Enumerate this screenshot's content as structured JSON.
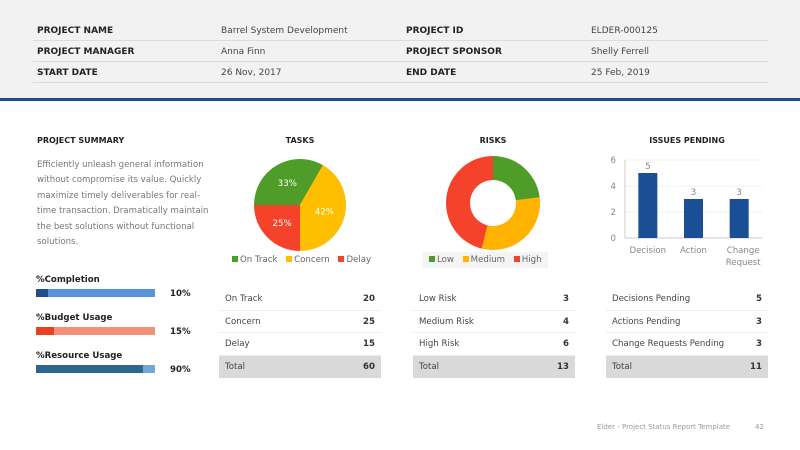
{
  "header": [
    {
      "label": "PROJECT NAME",
      "value": "Barrel System Development",
      "label2": "PROJECT ID",
      "value2": "ELDER-000125"
    },
    {
      "label": "PROJECT MANAGER",
      "value": "Anna Finn",
      "label2": "PROJECT SPONSOR",
      "value2": "Shelly Ferrell"
    },
    {
      "label": "START DATE",
      "value": "26 Nov, 2017",
      "label2": "END DATE",
      "value2": "25 Feb, 2019"
    }
  ],
  "summary": {
    "title": "PROJECT SUMMARY",
    "text": "Efficiently unleash general information without compromise its value. Quickly maximize timely deliverables for real-time transaction. Dramatically maintain the best solutions without functional solutions."
  },
  "progress": [
    {
      "label": "%Completion",
      "value": 10,
      "text": "10%",
      "fg": "#1f4e8c",
      "bg": "#5b93d9"
    },
    {
      "label": "%Budget Usage",
      "value": 15,
      "text": "15%",
      "fg": "#e8411c",
      "bg": "#f4907a"
    },
    {
      "label": "%Resource Usage",
      "value": 90,
      "text": "90%",
      "fg": "#2e6690",
      "bg": "#74a9d6"
    }
  ],
  "colors": {
    "green": "#4f9c28",
    "yellow": "#ffbf00",
    "red": "#f4432a",
    "blue": "#1a4f95"
  },
  "chart_data": [
    {
      "type": "pie",
      "title": "TASKS",
      "categories": [
        "On Track",
        "Concern",
        "Delay"
      ],
      "values": [
        20,
        25,
        15
      ],
      "labels": [
        "33%",
        "42%",
        "25%"
      ],
      "colors": [
        "#4f9c28",
        "#ffbf00",
        "#f4432a"
      ],
      "legend": "bottom"
    },
    {
      "type": "pie",
      "donut": true,
      "title": "RISKS",
      "categories": [
        "Low",
        "Medium",
        "High"
      ],
      "values": [
        3,
        4,
        6
      ],
      "colors": [
        "#4f9c28",
        "#ffb300",
        "#f4432a"
      ],
      "legend": "bottom"
    },
    {
      "type": "bar",
      "title": "ISSUES PENDING",
      "categories": [
        "Decision",
        "Action",
        "Change Request"
      ],
      "values": [
        5,
        3,
        3
      ],
      "ylim": [
        0,
        6
      ],
      "yticks": [
        "0",
        "2",
        "4",
        "6"
      ],
      "color": "#1a4f95"
    }
  ],
  "tables": [
    {
      "rows": [
        [
          "On Track",
          "20"
        ],
        [
          "Concern",
          "25"
        ],
        [
          "Delay",
          "15"
        ]
      ],
      "total": [
        "Total",
        "60"
      ]
    },
    {
      "rows": [
        [
          "Low Risk",
          "3"
        ],
        [
          "Medium Risk",
          "4"
        ],
        [
          "High Risk",
          "6"
        ]
      ],
      "total": [
        "Total",
        "13"
      ]
    },
    {
      "rows": [
        [
          "Decisions Pending",
          "5"
        ],
        [
          "Actions Pending",
          "3"
        ],
        [
          "Change Requests Pending",
          "3"
        ]
      ],
      "total": [
        "Total",
        "11"
      ]
    }
  ],
  "footer": {
    "text": "Elder - Project Status Report Template",
    "page": "42"
  }
}
